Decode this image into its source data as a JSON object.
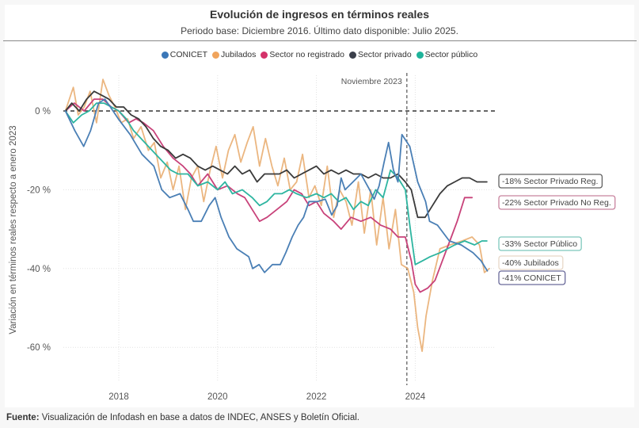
{
  "header": {
    "title": "Evolución de ingresos en términos reales",
    "subtitle": "Periodo base: Diciembre 2016. Último dato disponible: Julio 2025."
  },
  "footer": {
    "source_label": "Fuente:",
    "source_text": " Visualización de Infodash en base a datos de INDEC, ANSES y Boletín Oficial."
  },
  "chart_data": {
    "type": "line",
    "title": "Evolución de ingresos en términos reales",
    "subtitle": "Periodo base: Diciembre 2016. Último dato disponible: Julio 2025.",
    "xlabel": "",
    "ylabel": "Variación en términos reales respecto a enero 2023",
    "xlim": [
      2016.9,
      2025.8
    ],
    "ylim": [
      -72,
      10
    ],
    "x_ticks": [
      2018,
      2020,
      2022,
      2024
    ],
    "x_tick_labels": [
      "2018",
      "2020",
      "2022",
      "2024"
    ],
    "y_ticks": [
      0,
      -20,
      -40,
      -60
    ],
    "y_tick_labels": [
      "0 %",
      "-20 %",
      "-40 %",
      "-60 %"
    ],
    "grid": true,
    "legend_position": "top-center",
    "reference_line": {
      "value": 0,
      "style": "dashed"
    },
    "vertical_marker": {
      "x": 2023.83,
      "label": "Noviembre 2023",
      "style": "dashed"
    },
    "series": [
      {
        "name": "CONICET",
        "color": "#4a7fb5",
        "end_label": "-41% CONICET",
        "label_border": "#6a6a9a",
        "x": [
          2016.92,
          2017.11,
          2017.29,
          2017.43,
          2017.59,
          2017.72,
          2017.83,
          2017.99,
          2018.23,
          2018.47,
          2018.71,
          2018.87,
          2019.03,
          2019.24,
          2019.4,
          2019.51,
          2019.67,
          2019.83,
          2019.95,
          2020.07,
          2020.23,
          2020.39,
          2020.63,
          2020.71,
          2020.84,
          2020.95,
          2021.11,
          2021.27,
          2021.38,
          2021.51,
          2021.63,
          2021.74,
          2021.85,
          2022.02,
          2022.18,
          2022.31,
          2022.42,
          2022.5,
          2022.58,
          2022.74,
          2022.9,
          2023.06,
          2023.17,
          2023.27,
          2023.37,
          2023.46,
          2023.56,
          2023.65,
          2023.73,
          2023.89,
          2024.05,
          2024.21,
          2024.29,
          2024.45,
          2024.69,
          2024.93,
          2025.17,
          2025.33,
          2025.46
        ],
        "values": [
          0,
          -5,
          -9,
          -5,
          2,
          3,
          1,
          -2,
          -6,
          -11,
          -14,
          -20,
          -22,
          -21,
          -25,
          -28,
          -28,
          -24,
          -22,
          -27,
          -32,
          -35,
          -37,
          -40,
          -39,
          -41,
          -39,
          -39,
          -36,
          -32,
          -29,
          -27,
          -23,
          -23,
          -22.4,
          -26.4,
          -24,
          -17,
          -20,
          -18,
          -16,
          -19.6,
          -22.4,
          -19,
          -13,
          -8,
          -15,
          -18,
          -6,
          -9,
          -18,
          -23,
          -28,
          -29,
          -33,
          -34,
          -36,
          -38,
          -40.6
        ]
      },
      {
        "name": "Jubilados",
        "color": "#e8a96a",
        "end_label": "-40% Jubilados",
        "label_border": "#e8d8c8",
        "x": [
          2016.92,
          2017.08,
          2017.18,
          2017.3,
          2017.42,
          2017.55,
          2017.68,
          2017.8,
          2017.92,
          2018.05,
          2018.18,
          2018.3,
          2018.45,
          2018.6,
          2018.72,
          2018.85,
          2018.98,
          2019.1,
          2019.22,
          2019.35,
          2019.47,
          2019.6,
          2019.72,
          2019.85,
          2019.97,
          2020.1,
          2020.22,
          2020.35,
          2020.47,
          2020.6,
          2020.72,
          2020.85,
          2020.97,
          2021.1,
          2021.22,
          2021.35,
          2021.47,
          2021.6,
          2021.72,
          2021.85,
          2021.97,
          2022.1,
          2022.22,
          2022.35,
          2022.47,
          2022.6,
          2022.72,
          2022.85,
          2022.97,
          2023.1,
          2023.22,
          2023.35,
          2023.47,
          2023.6,
          2023.72,
          2023.85,
          2023.97,
          2024.05,
          2024.14,
          2024.22,
          2024.35,
          2024.5,
          2024.7,
          2024.95,
          2025.15,
          2025.3,
          2025.4,
          2025.5
        ],
        "values": [
          0,
          6,
          -1,
          1,
          5,
          -3,
          8,
          4,
          1,
          -3,
          -2,
          -7,
          -4,
          -10,
          -8,
          -17,
          -13,
          -20,
          -14,
          -25,
          -17,
          -14,
          -23,
          -15,
          -9,
          -17,
          -10,
          -6,
          -13,
          -8,
          -4,
          -14,
          -7,
          -14,
          -19,
          -12,
          -20,
          -18,
          -11,
          -22,
          -19,
          -24,
          -14,
          -27,
          -20,
          -23,
          -29,
          -18,
          -31,
          -20,
          -34,
          -22,
          -35,
          -25,
          -39,
          -40,
          -46,
          -55,
          -61,
          -52,
          -43,
          -35,
          -34,
          -33,
          -32,
          -34,
          -41,
          -40
        ]
      },
      {
        "name": "Sector no registrado",
        "color": "#c8427a",
        "end_label": "-22% Sector Privado No Reg.",
        "label_border": "#c8839e",
        "x": [
          2016.92,
          2017.1,
          2017.3,
          2017.5,
          2017.68,
          2017.85,
          2018.0,
          2018.2,
          2018.35,
          2018.5,
          2018.7,
          2018.9,
          2019.1,
          2019.3,
          2019.45,
          2019.6,
          2019.8,
          2020.0,
          2020.2,
          2020.4,
          2020.55,
          2020.7,
          2020.85,
          2021.0,
          2021.2,
          2021.4,
          2021.55,
          2021.7,
          2021.85,
          2022.0,
          2022.15,
          2022.35,
          2022.5,
          2022.7,
          2022.9,
          2023.1,
          2023.3,
          2023.5,
          2023.65,
          2023.8,
          2023.92,
          2024.0,
          2024.1,
          2024.25,
          2024.4,
          2024.55,
          2024.7,
          2024.85,
          2025.0,
          2025.15
        ],
        "values": [
          0,
          2,
          0,
          3,
          3,
          1,
          0,
          -3,
          -2,
          -3,
          -5,
          -9,
          -12,
          -14,
          -16,
          -19,
          -16,
          -20,
          -19,
          -21,
          -22,
          -25,
          -28,
          -27,
          -25,
          -23,
          -20,
          -21,
          -24,
          -23,
          -26,
          -28,
          -30,
          -27,
          -28,
          -27,
          -29,
          -30,
          -32,
          -32,
          -38,
          -44,
          -46,
          -45,
          -43,
          -38,
          -33,
          -28,
          -22,
          -22
        ]
      },
      {
        "name": "Sector privado",
        "color": "#3a3a3a",
        "end_label": "-18% Sector Privado Reg.",
        "label_border": "#606060",
        "x": [
          2016.92,
          2017.05,
          2017.2,
          2017.35,
          2017.5,
          2017.65,
          2017.8,
          2017.95,
          2018.1,
          2018.25,
          2018.4,
          2018.55,
          2018.7,
          2018.85,
          2019.0,
          2019.15,
          2019.3,
          2019.45,
          2019.6,
          2019.75,
          2019.9,
          2020.05,
          2020.2,
          2020.35,
          2020.5,
          2020.65,
          2020.8,
          2020.95,
          2021.1,
          2021.25,
          2021.4,
          2021.55,
          2021.7,
          2021.85,
          2022.0,
          2022.15,
          2022.3,
          2022.45,
          2022.6,
          2022.75,
          2022.9,
          2023.05,
          2023.2,
          2023.35,
          2023.5,
          2023.65,
          2023.8,
          2023.92,
          2024.05,
          2024.2,
          2024.35,
          2024.5,
          2024.65,
          2024.8,
          2024.95,
          2025.1,
          2025.25,
          2025.45
        ],
        "values": [
          0,
          2,
          0,
          3,
          5,
          4,
          3,
          1,
          1,
          -1,
          -2,
          -4,
          -7,
          -9,
          -10,
          -12,
          -11,
          -12,
          -14,
          -15,
          -14,
          -15,
          -16,
          -14,
          -16,
          -15,
          -18,
          -16,
          -16,
          -16,
          -15,
          -17,
          -16,
          -15,
          -14,
          -16,
          -15,
          -16,
          -15,
          -16,
          -16,
          -17,
          -16,
          -17,
          -17,
          -16,
          -18,
          -20,
          -27,
          -27,
          -24,
          -21,
          -19,
          -18,
          -17,
          -17,
          -18,
          -18
        ]
      },
      {
        "name": "Sector público",
        "color": "#2db5a0",
        "end_label": "-33% Sector Público",
        "label_border": "#7ec8bc",
        "x": [
          2016.92,
          2017.08,
          2017.25,
          2017.4,
          2017.55,
          2017.7,
          2017.85,
          2018.0,
          2018.15,
          2018.3,
          2018.45,
          2018.6,
          2018.75,
          2018.9,
          2019.05,
          2019.2,
          2019.4,
          2019.6,
          2019.8,
          2020.0,
          2020.15,
          2020.3,
          2020.5,
          2020.7,
          2020.85,
          2021.0,
          2021.15,
          2021.3,
          2021.45,
          2021.6,
          2021.8,
          2022.0,
          2022.15,
          2022.3,
          2022.45,
          2022.6,
          2022.75,
          2022.9,
          2023.05,
          2023.2,
          2023.35,
          2023.5,
          2023.65,
          2023.8,
          2023.9,
          2024.0,
          2024.15,
          2024.3,
          2024.5,
          2024.65,
          2024.8,
          2025.0,
          2025.2,
          2025.35,
          2025.45
        ],
        "values": [
          0,
          -3,
          -1,
          0,
          2,
          2,
          1,
          0,
          -2,
          -5,
          -7,
          -9,
          -11,
          -13,
          -15,
          -16,
          -16,
          -19,
          -18,
          -20,
          -18,
          -21,
          -20,
          -22,
          -24,
          -23,
          -21,
          -21,
          -20,
          -21,
          -22,
          -21,
          -22,
          -21,
          -23,
          -22,
          -25,
          -23,
          -24,
          -20,
          -22,
          -15,
          -17,
          -20,
          -30,
          -39,
          -38,
          -37,
          -36,
          -35,
          -34,
          -33,
          -34,
          -33,
          -33
        ]
      }
    ]
  },
  "legend": {
    "items": [
      {
        "label": "CONICET",
        "color": "#3b77b8"
      },
      {
        "label": "Jubilados",
        "color": "#f0a45c"
      },
      {
        "label": "Sector no registrado",
        "color": "#d4326a"
      },
      {
        "label": "Sector privado",
        "color": "#3a3f4a"
      },
      {
        "label": "Sector público",
        "color": "#1fb39a"
      }
    ]
  }
}
